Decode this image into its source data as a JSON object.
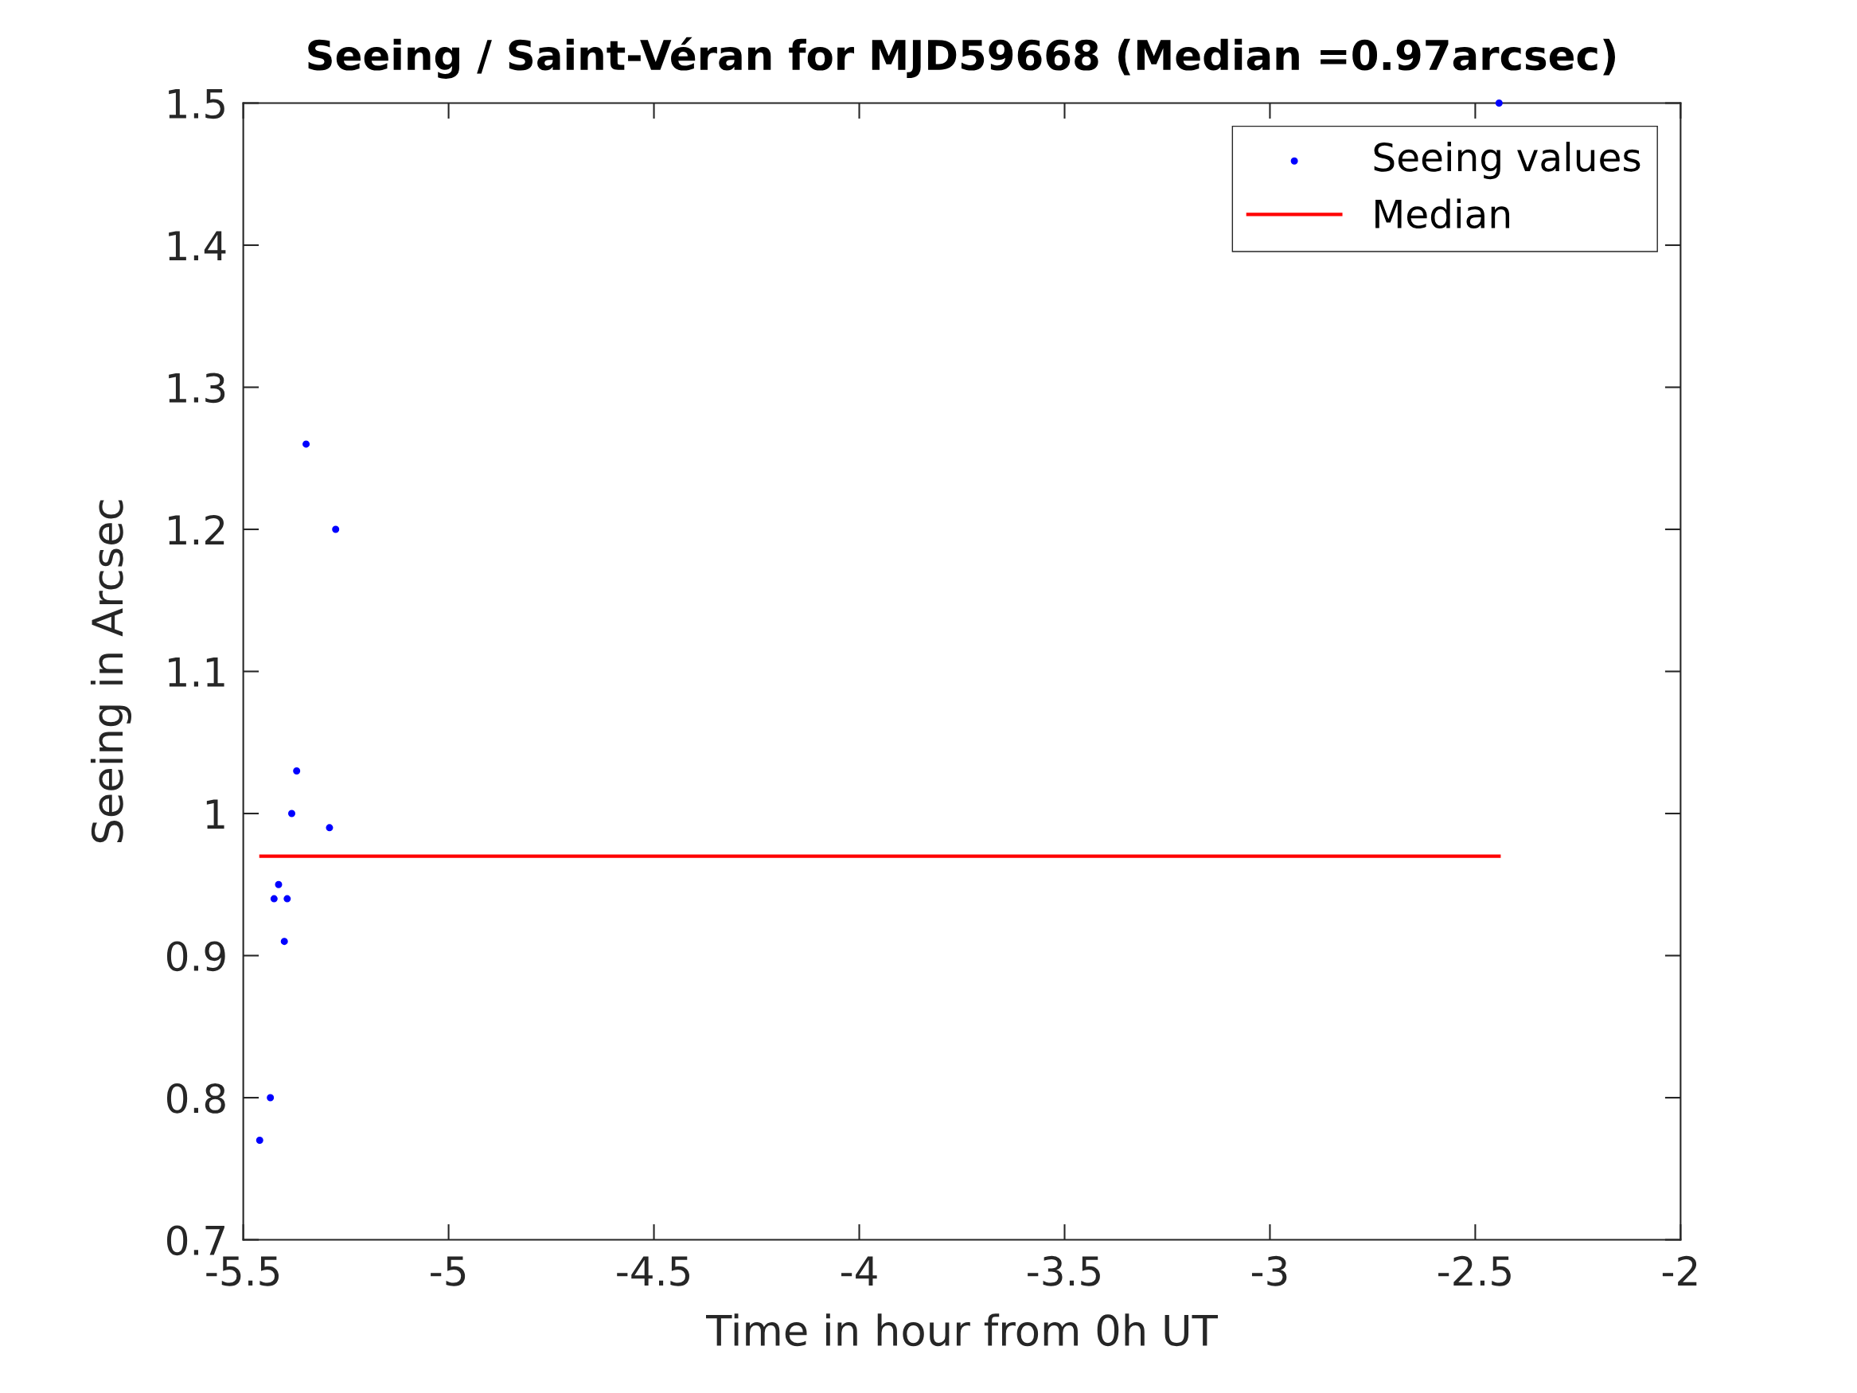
{
  "chart_data": {
    "type": "scatter",
    "title": "Seeing / Saint-Véran for MJD59668 (Median =0.97arcsec)",
    "xlabel": "Time in hour from 0h UT",
    "ylabel": "Seeing in Arcsec",
    "series": [
      {
        "name": "Seeing values",
        "color": "#0000ff",
        "marker": "circle",
        "x": [
          -5.46,
          -5.434,
          -5.425,
          -5.414,
          -5.4,
          -5.393,
          -5.382,
          -5.37,
          -5.347,
          -5.29,
          -5.275,
          -2.442
        ],
        "values": [
          0.77,
          0.8,
          0.94,
          0.95,
          0.91,
          0.94,
          1.0,
          1.03,
          1.26,
          0.99,
          1.2,
          1.5
        ]
      },
      {
        "name": "Median",
        "type": "line",
        "color": "#ff0000",
        "line_style": "solid",
        "marker": "none",
        "x": [
          -5.457,
          -2.442
        ],
        "values": [
          0.97,
          0.97
        ]
      }
    ],
    "xlim": [
      -5.5,
      -2
    ],
    "xticks": [
      -5.5,
      -5,
      -4.5,
      -4,
      -3.5,
      -3,
      -2.5,
      -2
    ],
    "ylim": [
      0.7,
      1.5
    ],
    "yticks": [
      0.7,
      0.8,
      0.9,
      1,
      1.1,
      1.2,
      1.3,
      1.4,
      1.5
    ],
    "grid": false,
    "legend": "top right"
  }
}
